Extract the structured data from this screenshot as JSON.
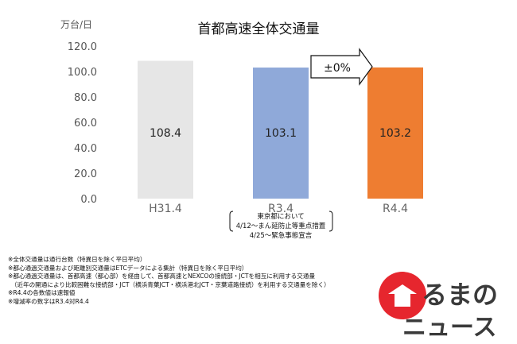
{
  "chart_data": {
    "type": "bar",
    "title": "首都高速全体交通量",
    "unit_label": "万台/日",
    "categories": [
      "H31.4",
      "R3.4",
      "R4.4"
    ],
    "values": [
      108.4,
      103.1,
      103.2
    ],
    "value_labels": [
      "108.4",
      "103.1",
      "103.2"
    ],
    "bar_colors": [
      "#e6e6e6",
      "#8fa9d9",
      "#ee7d31"
    ],
    "ylim": [
      0,
      120
    ],
    "yticks": [
      "0.0",
      "20.0",
      "40.0",
      "60.0",
      "80.0",
      "100.0",
      "120.0"
    ],
    "grid": false,
    "change_badge": "±0%",
    "annotation_lines": [
      "東京都において",
      "4/12～まん延防止等重点措置",
      "4/25～緊急事態宣言"
    ]
  },
  "notes": [
    "※全体交通量は通行台数（特異日を除く平日平均）",
    "※都心通過交通量および距離別交通量はETCデータによる集計（特異日を除く平日平均）",
    "※都心通過交通量は、首都高速（都心部）を経由して、首都高速とNEXCOの接続部・JCTを相互に利用する交通量",
    "　（近年の開通により比較困難な接続部・JCT（横浜青葉JCT・横浜港北JCT・京葉道路接続）を利用する交通量を除く）",
    "※R4.4の各数値は速報値",
    "※増減率の数字はR3.4対R4.4"
  ],
  "logo": {
    "line1": "るまの",
    "line2": "ニュース"
  }
}
